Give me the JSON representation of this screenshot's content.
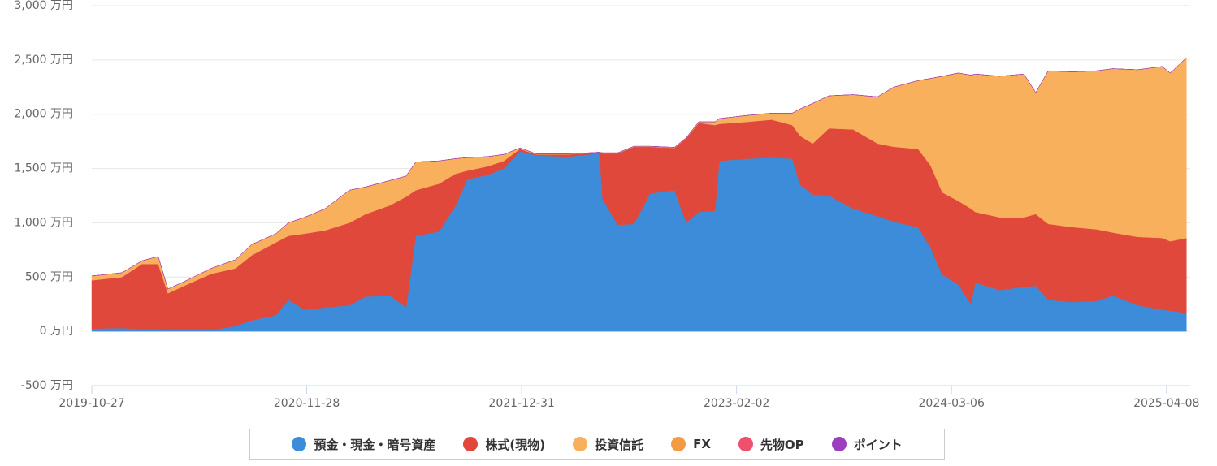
{
  "chart_data": {
    "type": "stacked-area",
    "x": [
      "2019-10-27",
      "2019-12-22",
      "2020-01-28",
      "2020-02-27",
      "2020-03-16",
      "2020-04-20",
      "2020-06-04",
      "2020-07-19",
      "2020-08-18",
      "2020-10-02",
      "2020-10-25",
      "2020-11-24",
      "2021-01-01",
      "2021-02-15",
      "2021-03-17",
      "2021-05-01",
      "2021-05-31",
      "2021-06-18",
      "2021-07-31",
      "2021-08-30",
      "2021-09-21",
      "2021-10-29",
      "2021-11-28",
      "2021-12-28",
      "2022-01-27",
      "2022-03-28",
      "2022-05-24",
      "2022-05-30",
      "2022-06-27",
      "2022-07-27",
      "2022-08-26",
      "2022-10-10",
      "2022-11-01",
      "2022-11-24",
      "2022-12-24",
      "2023-01-01",
      "2023-02-22",
      "2023-04-08",
      "2023-05-16",
      "2023-05-31",
      "2023-06-23",
      "2023-07-23",
      "2023-09-06",
      "2023-10-21",
      "2023-11-20",
      "2024-01-04",
      "2024-01-27",
      "2024-02-18",
      "2024-03-19",
      "2024-04-11",
      "2024-04-19",
      "2024-06-03",
      "2024-07-18",
      "2024-08-09",
      "2024-09-01",
      "2024-10-16",
      "2024-11-30",
      "2024-12-30",
      "2025-02-14",
      "2025-03-31",
      "2025-04-15",
      "2025-05-15"
    ],
    "series": [
      {
        "name": "預金・現金・暗号資産",
        "color": "#3d8cd9",
        "values": [
          25,
          30,
          20,
          20,
          10,
          10,
          10,
          50,
          100,
          150,
          290,
          200,
          220,
          240,
          320,
          330,
          220,
          880,
          920,
          1150,
          1400,
          1440,
          1500,
          1660,
          1620,
          1610,
          1640,
          1220,
          980,
          990,
          1270,
          1300,
          1000,
          1100,
          1110,
          1570,
          1590,
          1600,
          1590,
          1350,
          1260,
          1250,
          1130,
          1060,
          1010,
          960,
          770,
          520,
          430,
          250,
          450,
          380,
          410,
          420,
          290,
          270,
          280,
          330,
          240,
          200,
          190,
          170
        ]
      },
      {
        "name": "株式(現物)",
        "color": "#e0483b",
        "values": [
          445,
          470,
          600,
          600,
          340,
          420,
          520,
          530,
          600,
          670,
          590,
          700,
          710,
          760,
          760,
          830,
          1020,
          420,
          440,
          300,
          80,
          80,
          70,
          20,
          10,
          20,
          10,
          420,
          660,
          710,
          430,
          390,
          780,
          820,
          790,
          340,
          340,
          350,
          310,
          450,
          470,
          620,
          730,
          670,
          690,
          720,
          760,
          760,
          770,
          880,
          650,
          670,
          640,
          660,
          700,
          690,
          660,
          580,
          630,
          660,
          640,
          690
        ]
      },
      {
        "name": "投資信託",
        "color": "#f8b05c",
        "values": [
          40,
          40,
          30,
          70,
          40,
          40,
          50,
          80,
          100,
          80,
          120,
          150,
          200,
          300,
          250,
          230,
          190,
          260,
          210,
          140,
          120,
          90,
          60,
          10,
          5,
          5,
          0,
          5,
          5,
          5,
          5,
          5,
          5,
          10,
          30,
          50,
          60,
          60,
          110,
          250,
          370,
          300,
          320,
          430,
          550,
          630,
          800,
          1070,
          1180,
          1230,
          1270,
          1300,
          1320,
          1120,
          1410,
          1430,
          1460,
          1510,
          1540,
          1580,
          1550,
          1660
        ]
      },
      {
        "name": "FX",
        "color": "#f39a44",
        "values": [
          0,
          0,
          0,
          0,
          0,
          0,
          0,
          0,
          0,
          0,
          0,
          0,
          0,
          0,
          0,
          0,
          0,
          0,
          0,
          0,
          0,
          0,
          0,
          0,
          0,
          0,
          0,
          0,
          0,
          0,
          0,
          0,
          0,
          0,
          0,
          0,
          0,
          0,
          0,
          0,
          0,
          0,
          0,
          0,
          0,
          0,
          0,
          0,
          0,
          0,
          0,
          0,
          0,
          0,
          0,
          0,
          0,
          0,
          0,
          0,
          0,
          0
        ]
      },
      {
        "name": "先物OP",
        "color": "#f0506e",
        "values": [
          0,
          0,
          0,
          0,
          0,
          0,
          0,
          0,
          0,
          0,
          0,
          0,
          0,
          0,
          0,
          0,
          0,
          0,
          0,
          0,
          0,
          0,
          0,
          0,
          0,
          0,
          0,
          0,
          0,
          0,
          0,
          0,
          0,
          0,
          0,
          0,
          0,
          0,
          0,
          0,
          0,
          0,
          0,
          0,
          0,
          0,
          0,
          0,
          0,
          0,
          0,
          0,
          0,
          0,
          0,
          0,
          0,
          0,
          0,
          0,
          0,
          0
        ]
      },
      {
        "name": "ポイント",
        "color": "#9b3fbf",
        "values": [
          0,
          0,
          0,
          0,
          0,
          0,
          0,
          0,
          0,
          0,
          0,
          0,
          0,
          0,
          0,
          0,
          0,
          0,
          0,
          0,
          0,
          0,
          0,
          0,
          0,
          0,
          0,
          0,
          0,
          0,
          0,
          0,
          0,
          0,
          0,
          0,
          0,
          0,
          0,
          0,
          0,
          0,
          0,
          0,
          0,
          0,
          0,
          0,
          0,
          0,
          0,
          0,
          0,
          0,
          0,
          0,
          0,
          0,
          0,
          0,
          0,
          0
        ]
      }
    ],
    "xlim": [
      "2019-10-27",
      "2025-05-22"
    ],
    "xticks": [
      "2019-10-27",
      "2020-11-28",
      "2021-12-31",
      "2023-02-02",
      "2024-03-06",
      "2025-04-08"
    ],
    "ylim": [
      -500,
      3000
    ],
    "yticks": [
      {
        "value": -500,
        "label": "-500 万円"
      },
      {
        "value": 0,
        "label": "0 万円"
      },
      {
        "value": 500,
        "label": "500 万円"
      },
      {
        "value": 1000,
        "label": "1,000 万円"
      },
      {
        "value": 1500,
        "label": "1,500 万円"
      },
      {
        "value": 2000,
        "label": "2,000 万円"
      },
      {
        "value": 2500,
        "label": "2,500 万円"
      },
      {
        "value": 3000,
        "label": "3,000 万円"
      }
    ],
    "grid": true
  }
}
